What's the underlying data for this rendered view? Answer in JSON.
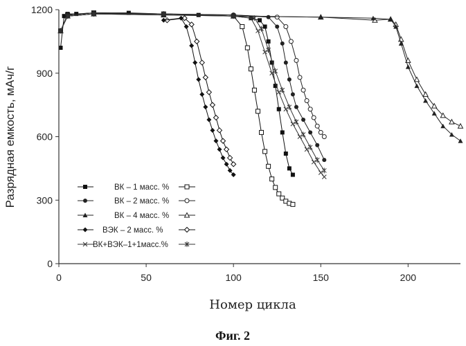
{
  "chart_data": {
    "type": "line",
    "title": "",
    "caption": "Фиг. 2",
    "xlabel": "Номер цикла",
    "ylabel": "Разрядная емкость, мАч/г",
    "xlim": [
      0,
      230
    ],
    "ylim": [
      0,
      1200
    ],
    "xticks": [
      "0",
      "50",
      "100",
      "150",
      "200"
    ],
    "xtick_values": [
      0,
      50,
      100,
      150,
      200
    ],
    "yticks": [
      "0",
      "300",
      "600",
      "900",
      "1200"
    ],
    "ytick_values": [
      0,
      300,
      600,
      900,
      1200
    ],
    "grid": false,
    "legend_position": "lower-left",
    "series": [
      {
        "name": "ВК – 1 масс. %",
        "x": [
          1,
          3,
          5,
          10,
          20,
          40,
          60,
          80,
          100,
          110,
          115,
          118,
          120,
          122,
          124,
          126,
          128,
          130,
          132,
          134
        ],
        "y": [
          1020,
          1170,
          1180,
          1180,
          1185,
          1185,
          1180,
          1175,
          1170,
          1160,
          1150,
          1120,
          1050,
          950,
          840,
          730,
          620,
          520,
          450,
          420
        ],
        "alt_x": [
          1,
          5,
          20,
          60,
          100,
          105,
          108,
          110,
          112,
          114,
          116,
          118,
          120,
          122,
          124,
          126,
          128,
          130,
          132,
          134
        ],
        "alt_y": [
          1100,
          1175,
          1185,
          1180,
          1170,
          1120,
          1020,
          920,
          820,
          720,
          620,
          530,
          460,
          400,
          360,
          330,
          310,
          295,
          285,
          280
        ]
      },
      {
        "name": "ВК – 2 масс. %",
        "x": [
          1,
          5,
          20,
          60,
          100,
          120,
          125,
          128,
          130,
          132,
          134,
          136,
          140,
          144,
          148,
          152
        ],
        "y": [
          1100,
          1175,
          1185,
          1180,
          1175,
          1165,
          1120,
          1040,
          950,
          870,
          800,
          740,
          680,
          620,
          560,
          490
        ],
        "alt_x": [
          1,
          5,
          20,
          60,
          100,
          125,
          130,
          133,
          136,
          138,
          140,
          142,
          144,
          146,
          148,
          150,
          152
        ],
        "alt_y": [
          1100,
          1175,
          1185,
          1180,
          1175,
          1165,
          1120,
          1050,
          960,
          880,
          820,
          770,
          730,
          690,
          650,
          620,
          600
        ]
      },
      {
        "name": "ВК – 4 масс. %",
        "x": [
          1,
          5,
          20,
          60,
          100,
          150,
          180,
          190,
          193,
          196,
          200,
          205,
          210,
          215,
          220,
          225,
          230
        ],
        "y": [
          1100,
          1170,
          1180,
          1175,
          1170,
          1165,
          1160,
          1155,
          1120,
          1040,
          930,
          840,
          770,
          710,
          650,
          610,
          580
        ],
        "alt_x": [
          1,
          5,
          20,
          60,
          100,
          150,
          181,
          190,
          193,
          196,
          200,
          205,
          210,
          215,
          220,
          225,
          230
        ],
        "alt_y": [
          1100,
          1170,
          1180,
          1175,
          1170,
          1165,
          1150,
          1155,
          1130,
          1060,
          960,
          870,
          800,
          745,
          700,
          670,
          650
        ]
      },
      {
        "name": "ВЭК – 2 масс. %",
        "x": [
          60,
          70,
          73,
          76,
          78,
          80,
          82,
          84,
          86,
          88,
          90,
          92,
          94,
          96,
          98,
          100
        ],
        "y": [
          1150,
          1160,
          1120,
          1030,
          950,
          870,
          800,
          740,
          680,
          630,
          580,
          540,
          500,
          470,
          440,
          420
        ],
        "alt_x": [
          62,
          72,
          76,
          79,
          82,
          84,
          86,
          88,
          90,
          92,
          94,
          96,
          98,
          100
        ],
        "alt_y": [
          1150,
          1160,
          1130,
          1050,
          950,
          880,
          810,
          750,
          690,
          630,
          580,
          540,
          500,
          470
        ]
      },
      {
        "name": "ВК+ВЭК–1+1масс.%",
        "x": [
          1,
          5,
          20,
          60,
          100,
          110,
          114,
          118,
          122,
          126,
          130,
          134,
          138,
          142,
          146,
          150,
          152
        ],
        "y": [
          1100,
          1170,
          1180,
          1180,
          1170,
          1160,
          1100,
          1000,
          900,
          810,
          730,
          660,
          600,
          540,
          480,
          430,
          410
        ],
        "alt_x": [
          1,
          5,
          20,
          60,
          100,
          112,
          116,
          120,
          124,
          128,
          132,
          136,
          140,
          144,
          148,
          152
        ],
        "alt_y": [
          1100,
          1170,
          1180,
          1180,
          1170,
          1160,
          1110,
          1010,
          910,
          820,
          740,
          670,
          610,
          550,
          490,
          440
        ]
      }
    ]
  },
  "series_styles": [
    {
      "marker": "square",
      "alt_marker": "square-open",
      "color": "#111111"
    },
    {
      "marker": "circle",
      "alt_marker": "circle-open",
      "color": "#222222"
    },
    {
      "marker": "triangle",
      "alt_marker": "triangle-open",
      "color": "#222222"
    },
    {
      "marker": "diamond",
      "alt_marker": "diamond-open",
      "color": "#111111"
    },
    {
      "marker": "x",
      "alt_marker": "asterisk",
      "color": "#333333"
    }
  ]
}
